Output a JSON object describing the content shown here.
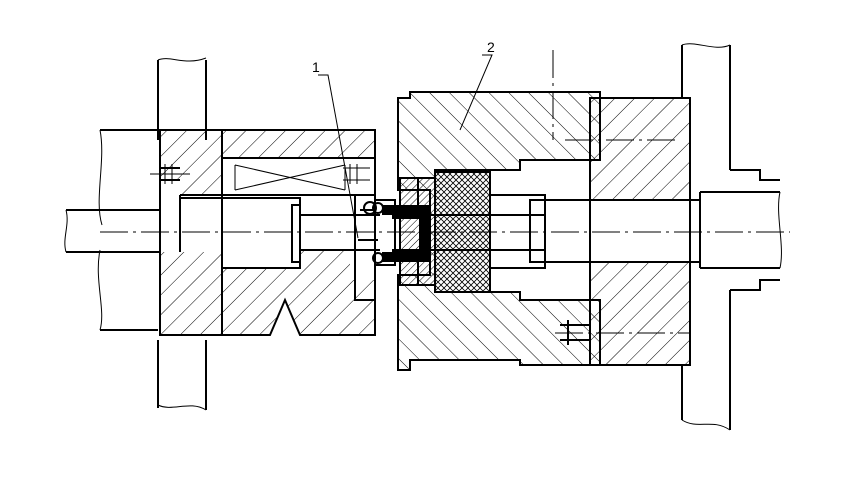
{
  "callouts": [
    {
      "id": "callout-1",
      "text": "1"
    },
    {
      "id": "callout-2",
      "text": "2"
    }
  ]
}
